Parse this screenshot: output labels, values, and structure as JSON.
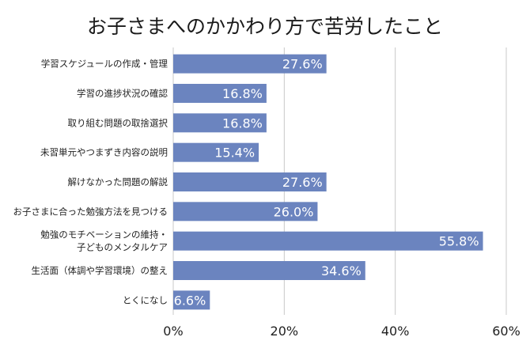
{
  "chart_data": {
    "type": "bar",
    "orientation": "horizontal",
    "title": "お子さまへのかかわり方で苦労したこと",
    "categories": [
      [
        "学習スケジュールの作成・管理"
      ],
      [
        "学習の進捗状況の確認"
      ],
      [
        "取り組む問題の取捨選択"
      ],
      [
        "未習単元やつまずき内容の説明"
      ],
      [
        "解けなかった問題の解説"
      ],
      [
        "お子さまに合った勉強方法を見つける"
      ],
      [
        "勉強のモチベーションの維持・",
        "子どものメンタルケア"
      ],
      [
        "生活面（体調や学習環境）の整え"
      ],
      [
        "とくになし"
      ]
    ],
    "values": [
      27.6,
      16.8,
      16.8,
      15.4,
      27.6,
      26.0,
      55.8,
      34.6,
      6.6
    ],
    "value_labels": [
      "27.6%",
      "16.8%",
      "16.8%",
      "15.4%",
      "27.6%",
      "26.0%",
      "55.8%",
      "34.6%",
      "6.6%"
    ],
    "xlim": [
      0,
      60
    ],
    "xticks": [
      0,
      20,
      40,
      60
    ],
    "xtick_labels": [
      "0%",
      "20%",
      "40%",
      "60%"
    ],
    "grid": true,
    "legend": "none",
    "bar_color": "#6b84bf",
    "xlabel": "",
    "ylabel": ""
  }
}
